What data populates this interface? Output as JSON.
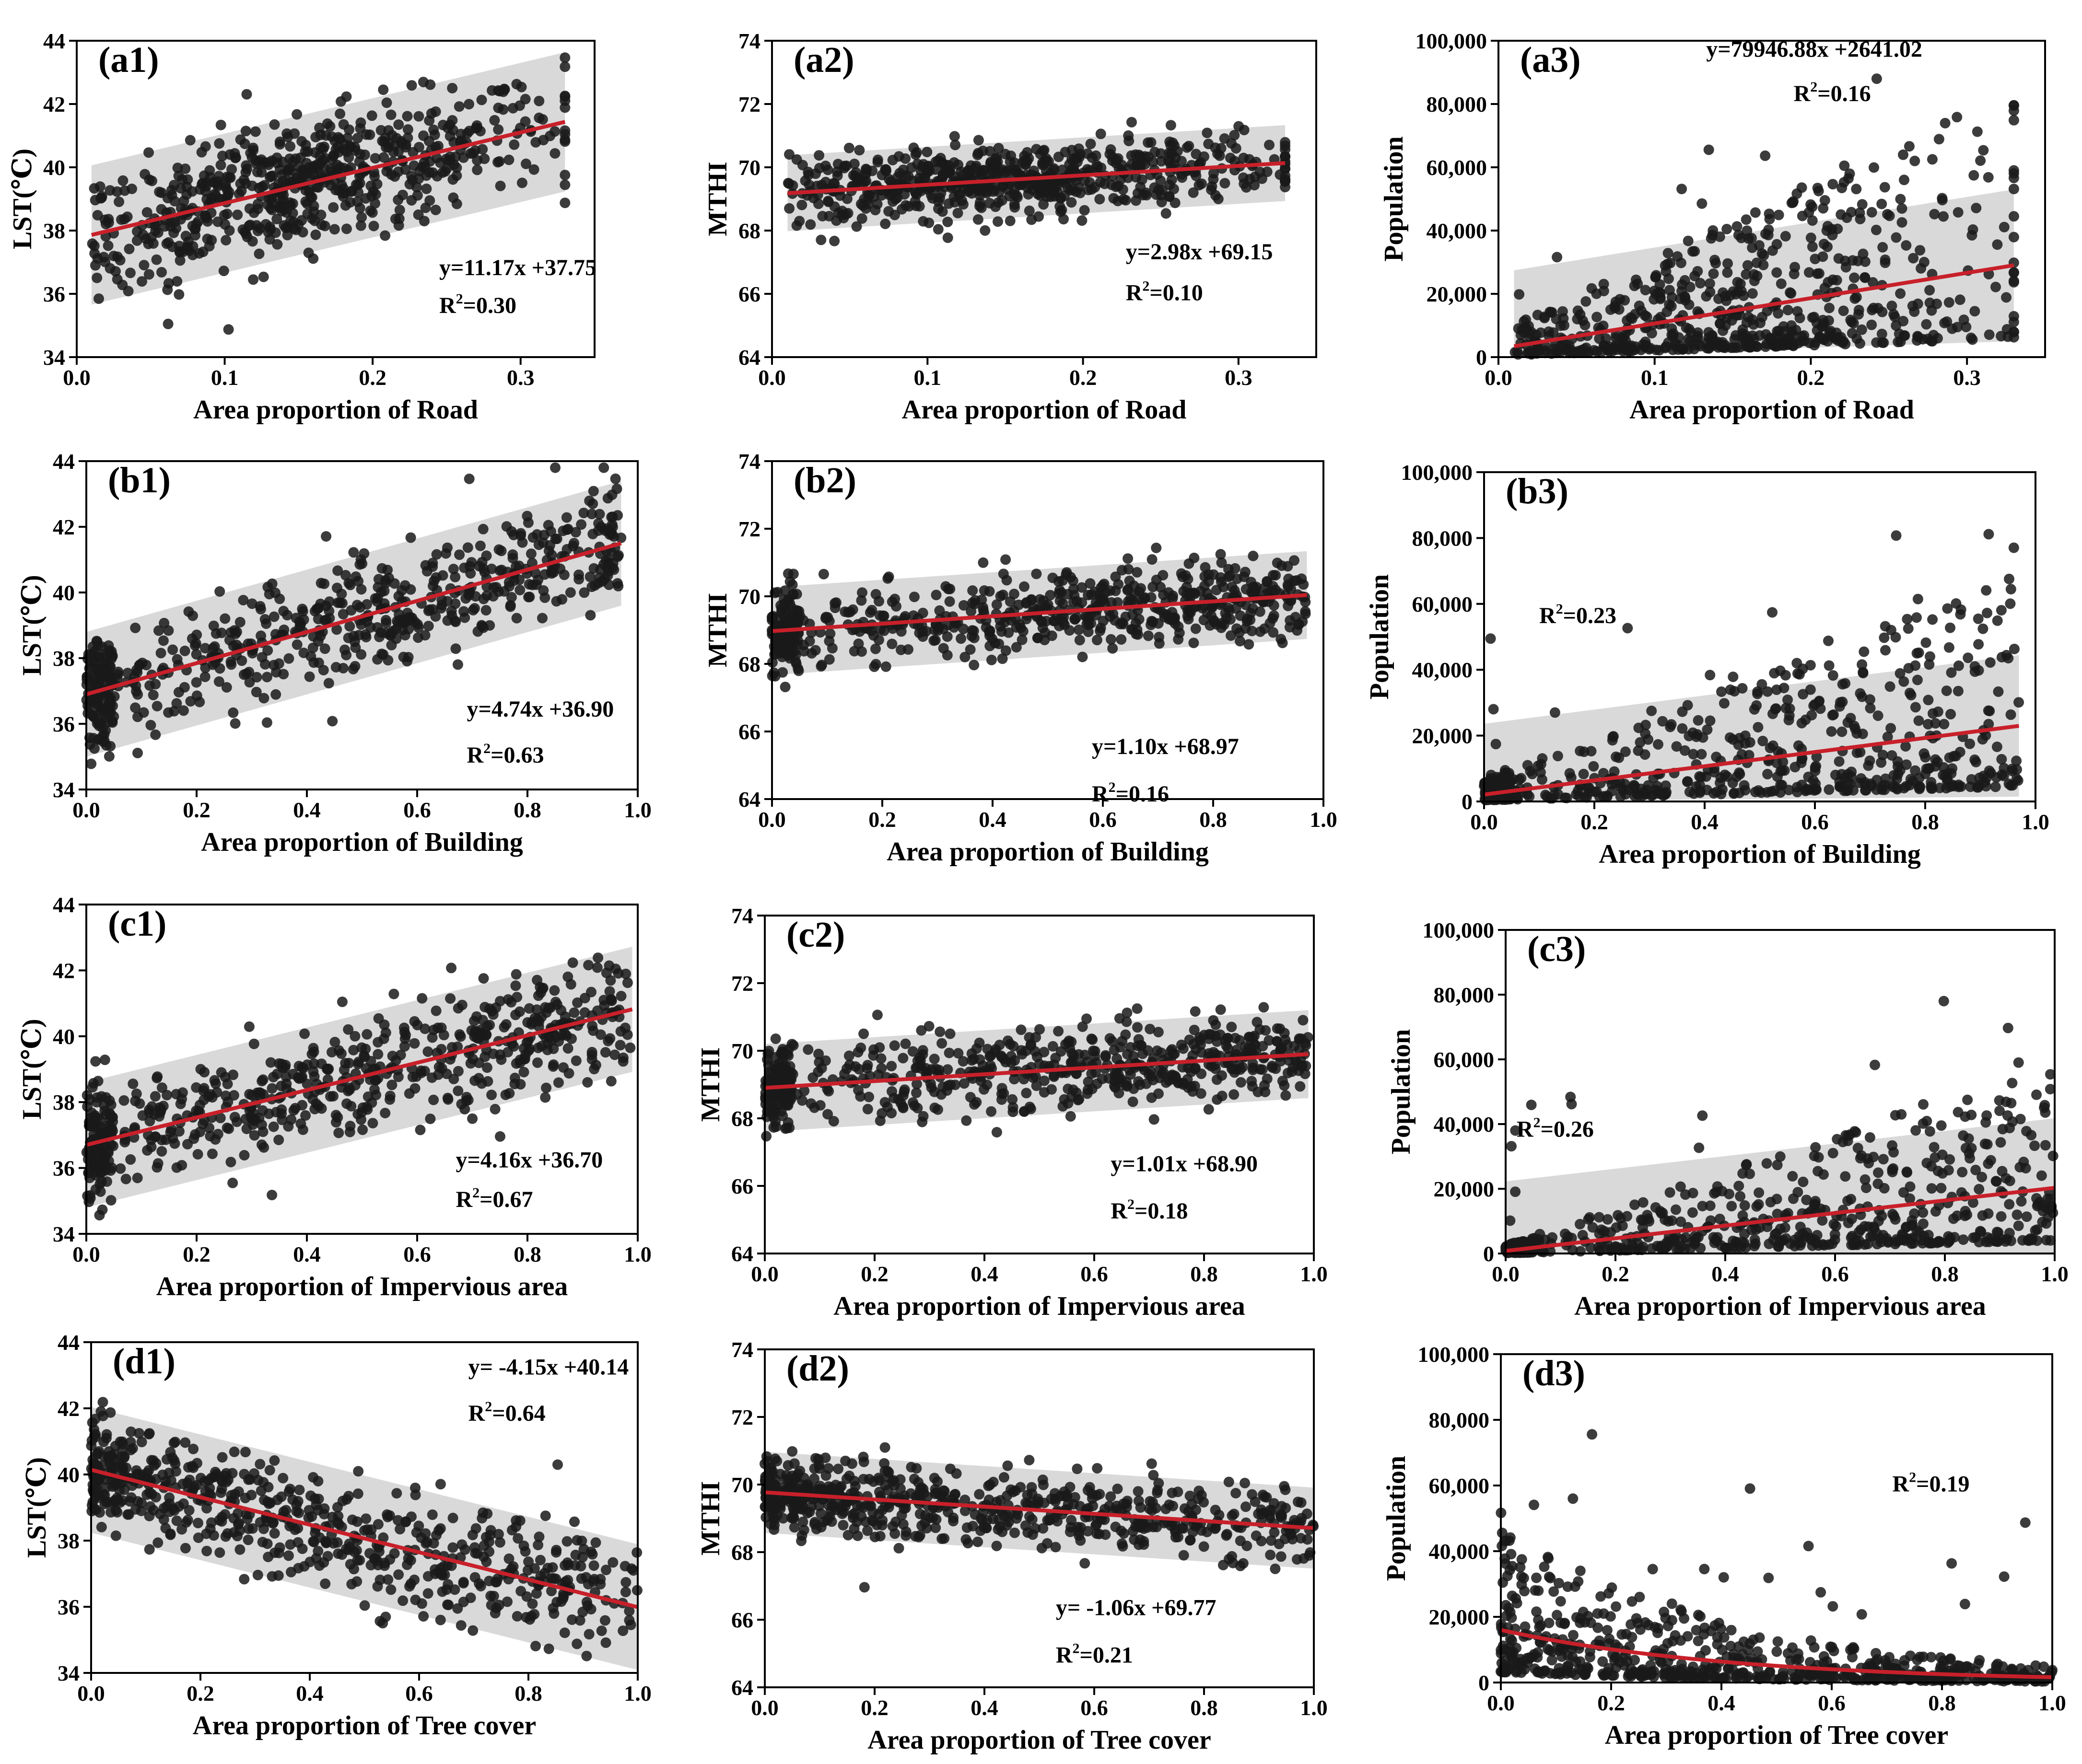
{
  "chart_data": [
    {
      "id": "a1",
      "type": "scatter",
      "label": "(a1)",
      "xlabel": "Area proportion of Road",
      "ylabel": "LST(℃)",
      "xlim": [
        0,
        0.35
      ],
      "ylim": [
        34,
        44
      ],
      "xticks": [
        "0.0",
        "0.1",
        "0.2",
        "0.3"
      ],
      "yticks": [
        "34",
        "36",
        "38",
        "40",
        "42",
        "44"
      ],
      "fit": {
        "kind": "linear",
        "slope": 11.17,
        "intercept": 37.75
      },
      "equation": "y=11.17x +37.75",
      "r2_label": "R",
      "r2_sup": "2",
      "r2_value": "=0.30",
      "band_halfwidth": 2.2,
      "x_range": [
        0.01,
        0.33
      ]
    },
    {
      "id": "a2",
      "type": "scatter",
      "label": "(a2)",
      "xlabel": "Area proportion of Road",
      "ylabel": "MTHI",
      "xlim": [
        0,
        0.35
      ],
      "ylim": [
        64,
        74
      ],
      "xticks": [
        "0.0",
        "0.1",
        "0.2",
        "0.3"
      ],
      "yticks": [
        "64",
        "66",
        "68",
        "70",
        "72",
        "74"
      ],
      "fit": {
        "kind": "linear",
        "slope": 2.98,
        "intercept": 69.15
      },
      "equation": "y=2.98x +69.15",
      "r2_label": "R",
      "r2_sup": "2",
      "r2_value": "=0.10",
      "band_halfwidth": 1.2,
      "x_range": [
        0.01,
        0.33
      ]
    },
    {
      "id": "a3",
      "type": "scatter",
      "label": "(a3)",
      "xlabel": "Area proportion of Road",
      "ylabel": "Population",
      "xlim": [
        0,
        0.35
      ],
      "ylim": [
        0,
        100000
      ],
      "xticks": [
        "0.0",
        "0.1",
        "0.2",
        "0.3"
      ],
      "yticks": [
        "0",
        "20,000",
        "40,000",
        "60,000",
        "80,000",
        "100,000"
      ],
      "fit": {
        "kind": "linear",
        "slope": 79946.88,
        "intercept": 2641.02
      },
      "equation": "y=79946.88x +2641.02",
      "r2_label": "R",
      "r2_sup": "2",
      "r2_value": "=0.16",
      "band_halfwidth": 24000,
      "x_range": [
        0.01,
        0.33
      ]
    },
    {
      "id": "b1",
      "type": "scatter",
      "label": "(b1)",
      "xlabel": "Area proportion of Building",
      "ylabel": "LST(℃)",
      "xlim": [
        0,
        1.0
      ],
      "ylim": [
        34,
        44
      ],
      "xticks": [
        "0.0",
        "0.2",
        "0.4",
        "0.6",
        "0.8",
        "1.0"
      ],
      "yticks": [
        "34",
        "36",
        "38",
        "40",
        "42",
        "44"
      ],
      "fit": {
        "kind": "linear",
        "slope": 4.74,
        "intercept": 36.9
      },
      "equation": "y=4.74x +36.90",
      "r2_label": "R",
      "r2_sup": "2",
      "r2_value": "=0.63",
      "band_halfwidth": 1.9,
      "x_range": [
        0.0,
        0.97
      ]
    },
    {
      "id": "b2",
      "type": "scatter",
      "label": "(b2)",
      "xlabel": "Area proportion of Building",
      "ylabel": "MTHI",
      "xlim": [
        0,
        1.0
      ],
      "ylim": [
        64,
        74
      ],
      "xticks": [
        "0.0",
        "0.2",
        "0.4",
        "0.6",
        "0.8",
        "1.0"
      ],
      "yticks": [
        "64",
        "66",
        "68",
        "70",
        "72",
        "74"
      ],
      "fit": {
        "kind": "linear",
        "slope": 1.1,
        "intercept": 68.97
      },
      "equation": "y=1.10x +68.97",
      "r2_label": "R",
      "r2_sup": "2",
      "r2_value": "=0.16",
      "band_halfwidth": 1.3,
      "x_range": [
        0.0,
        0.97
      ]
    },
    {
      "id": "b3",
      "type": "scatter",
      "label": "(b3)",
      "xlabel": "Area proportion of Building",
      "ylabel": "Population",
      "xlim": [
        0,
        1.0
      ],
      "ylim": [
        0,
        100000
      ],
      "xticks": [
        "0.0",
        "0.2",
        "0.4",
        "0.6",
        "0.8",
        "1.0"
      ],
      "yticks": [
        "0",
        "20,000",
        "40,000",
        "60,000",
        "80,000",
        "100,000"
      ],
      "fit": {
        "kind": "linear",
        "slope": 21500,
        "intercept": 2100
      },
      "equation": "",
      "r2_label": "R",
      "r2_sup": "2",
      "r2_value": "=0.23",
      "band_halfwidth": 21500,
      "x_range": [
        0.0,
        0.97
      ]
    },
    {
      "id": "c1",
      "type": "scatter",
      "label": "(c1)",
      "xlabel": "Area proportion of Impervious area",
      "ylabel": "LST(℃)",
      "xlim": [
        0,
        1.0
      ],
      "ylim": [
        34,
        44
      ],
      "xticks": [
        "0.0",
        "0.2",
        "0.4",
        "0.6",
        "0.8",
        "1.0"
      ],
      "yticks": [
        "34",
        "36",
        "38",
        "40",
        "42",
        "44"
      ],
      "fit": {
        "kind": "linear",
        "slope": 4.16,
        "intercept": 36.7
      },
      "equation": "y=4.16x +36.70",
      "r2_label": "R",
      "r2_sup": "2",
      "r2_value": "=0.67",
      "band_halfwidth": 1.9,
      "x_range": [
        0.0,
        0.99
      ]
    },
    {
      "id": "c2",
      "type": "scatter",
      "label": "(c2)",
      "xlabel": "Area proportion of Impervious area",
      "ylabel": "MTHI",
      "xlim": [
        0,
        1.0
      ],
      "ylim": [
        64,
        74
      ],
      "xticks": [
        "0.0",
        "0.2",
        "0.4",
        "0.6",
        "0.8",
        "1.0"
      ],
      "yticks": [
        "64",
        "66",
        "68",
        "70",
        "72",
        "74"
      ],
      "fit": {
        "kind": "linear",
        "slope": 1.01,
        "intercept": 68.9
      },
      "equation": "y=1.01x +68.90",
      "r2_label": "R",
      "r2_sup": "2",
      "r2_value": "=0.18",
      "band_halfwidth": 1.3,
      "x_range": [
        0.0,
        0.99
      ]
    },
    {
      "id": "c3",
      "type": "scatter",
      "label": "(c3)",
      "xlabel": "Area proportion of Impervious area",
      "ylabel": "Population",
      "xlim": [
        0,
        1.0
      ],
      "ylim": [
        0,
        100000
      ],
      "xticks": [
        "0.0",
        "0.2",
        "0.4",
        "0.6",
        "0.8",
        "1.0"
      ],
      "yticks": [
        "0",
        "20,000",
        "40,000",
        "60,000",
        "80,000",
        "100,000"
      ],
      "fit": {
        "kind": "linear",
        "slope": 19500,
        "intercept": 800
      },
      "equation": "",
      "r2_label": "R",
      "r2_sup": "2",
      "r2_value": "=0.26",
      "band_halfwidth": 21500,
      "x_range": [
        0.0,
        1.0
      ]
    },
    {
      "id": "d1",
      "type": "scatter",
      "label": "(d1)",
      "xlabel": "Area proportion of Tree cover",
      "ylabel": "LST(℃)",
      "xlim": [
        0,
        1.0
      ],
      "ylim": [
        34,
        44
      ],
      "xticks": [
        "0.0",
        "0.2",
        "0.4",
        "0.6",
        "0.8",
        "1.0"
      ],
      "yticks": [
        "34",
        "36",
        "38",
        "40",
        "42",
        "44"
      ],
      "fit": {
        "kind": "linear",
        "slope": -4.15,
        "intercept": 40.14
      },
      "equation": "y= -4.15x +40.14",
      "r2_label": "R",
      "r2_sup": "2",
      "r2_value": "=0.64",
      "band_halfwidth": 1.9,
      "x_range": [
        0.0,
        1.0
      ]
    },
    {
      "id": "d2",
      "type": "scatter",
      "label": "(d2)",
      "xlabel": "Area proportion of Tree cover",
      "ylabel": "MTHI",
      "xlim": [
        0,
        1.0
      ],
      "ylim": [
        64,
        74
      ],
      "xticks": [
        "0.0",
        "0.2",
        "0.4",
        "0.6",
        "0.8",
        "1.0"
      ],
      "yticks": [
        "64",
        "66",
        "68",
        "70",
        "72",
        "74"
      ],
      "fit": {
        "kind": "linear",
        "slope": -1.06,
        "intercept": 69.77
      },
      "equation": "y= -1.06x +69.77",
      "r2_label": "R",
      "r2_sup": "2",
      "r2_value": "=0.21",
      "band_halfwidth": 1.2,
      "x_range": [
        0.0,
        1.0
      ]
    },
    {
      "id": "d3",
      "type": "scatter",
      "label": "(d3)",
      "xlabel": "Area proportion of Tree cover",
      "ylabel": "Population",
      "xlim": [
        0,
        1.0
      ],
      "ylim": [
        0,
        100000
      ],
      "xticks": [
        "0.0",
        "0.2",
        "0.4",
        "0.6",
        "0.8",
        "1.0"
      ],
      "yticks": [
        "0",
        "20,000",
        "40,000",
        "60,000",
        "80,000",
        "100,000"
      ],
      "fit": {
        "kind": "exp_decay",
        "a": 16000,
        "b": 2.3
      },
      "equation": "",
      "r2_label": "R",
      "r2_sup": "2",
      "r2_value": "=0.19",
      "band_halfwidth": 0,
      "x_range": [
        0.0,
        1.0
      ]
    }
  ],
  "colors": {
    "point": "#1a1a1a",
    "fit_line": "#c8202a",
    "band": "#d9d9d9",
    "axis": "#000000"
  }
}
